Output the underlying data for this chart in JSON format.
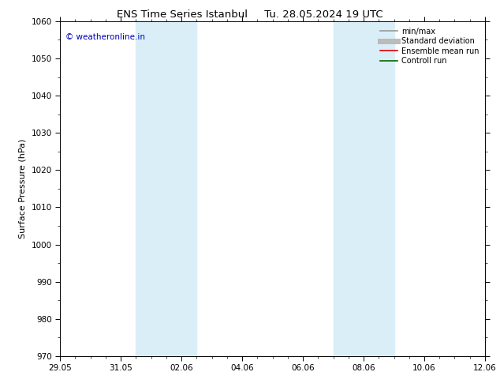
{
  "title": "ENS Time Series Istanbul     Tu. 28.05.2024 19 UTC",
  "ylabel": "Surface Pressure (hPa)",
  "ylim": [
    970,
    1060
  ],
  "yticks": [
    970,
    980,
    990,
    1000,
    1010,
    1020,
    1030,
    1040,
    1050,
    1060
  ],
  "xlim": [
    0,
    14
  ],
  "x_tick_labels": [
    "29.05",
    "31.05",
    "02.06",
    "04.06",
    "06.06",
    "08.06",
    "10.06",
    "12.06"
  ],
  "x_tick_positions": [
    0,
    2,
    4,
    6,
    8,
    10,
    12,
    14
  ],
  "shaded_regions": [
    {
      "x_start": 2.5,
      "x_end": 4.5,
      "color": "#daeef8",
      "alpha": 1.0
    },
    {
      "x_start": 9.0,
      "x_end": 11.0,
      "color": "#daeef8",
      "alpha": 1.0
    }
  ],
  "copyright_text": "© weatheronline.in",
  "copyright_color": "#0000bb",
  "background_color": "#ffffff",
  "legend_items": [
    {
      "label": "min/max",
      "color": "#999999",
      "lw": 1.2
    },
    {
      "label": "Standard deviation",
      "color": "#bbbbbb",
      "lw": 5
    },
    {
      "label": "Ensemble mean run",
      "color": "#dd0000",
      "lw": 1.2
    },
    {
      "label": "Controll run",
      "color": "#006600",
      "lw": 1.2
    }
  ],
  "title_fontsize": 9.5,
  "ylabel_fontsize": 8,
  "tick_fontsize": 7.5,
  "copyright_fontsize": 7.5,
  "legend_fontsize": 7,
  "figsize": [
    6.34,
    4.9
  ],
  "dpi": 100
}
